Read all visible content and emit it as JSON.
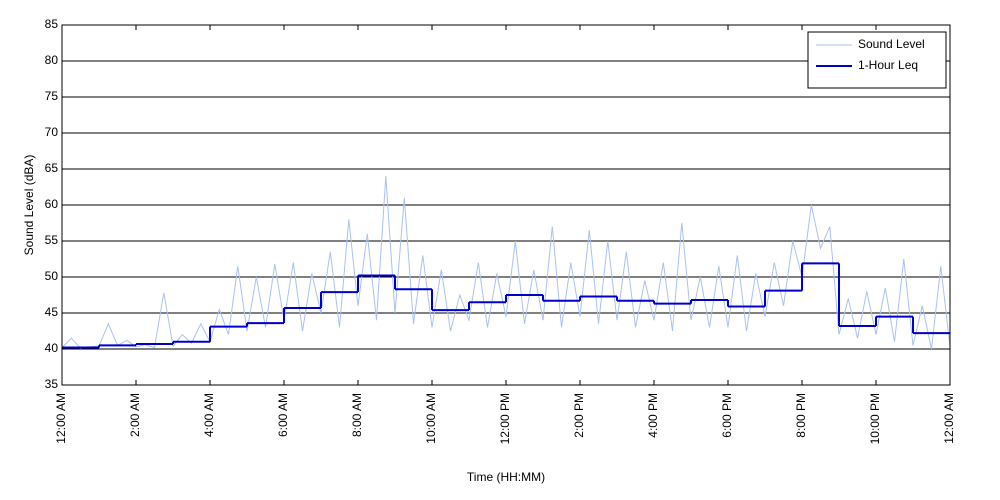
{
  "chart_data": {
    "type": "line",
    "x_label": "Time (HH:MM)",
    "y_label": "Sound Level (dBA)",
    "xlim": [
      0,
      24
    ],
    "ylim": [
      35,
      85
    ],
    "xticks": [
      {
        "value": 0,
        "label": "12:00 AM"
      },
      {
        "value": 2,
        "label": "2:00 AM"
      },
      {
        "value": 4,
        "label": "4:00 AM"
      },
      {
        "value": 6,
        "label": "6:00 AM"
      },
      {
        "value": 8,
        "label": "8:00 AM"
      },
      {
        "value": 10,
        "label": "10:00 AM"
      },
      {
        "value": 12,
        "label": "12:00 PM"
      },
      {
        "value": 14,
        "label": "2:00 PM"
      },
      {
        "value": 16,
        "label": "4:00 PM"
      },
      {
        "value": 18,
        "label": "6:00 PM"
      },
      {
        "value": 20,
        "label": "8:00 PM"
      },
      {
        "value": 22,
        "label": "10:00 PM"
      },
      {
        "value": 24,
        "label": "12:00 AM"
      }
    ],
    "yticks": [
      35,
      40,
      45,
      50,
      55,
      60,
      65,
      70,
      75,
      80,
      85
    ],
    "grid": true,
    "legend": "northeast",
    "series": [
      {
        "name": "Sound Level",
        "color": "#a9c2f2",
        "drawstyle": "default",
        "x": [
          0,
          0.25,
          0.5,
          0.75,
          1,
          1.25,
          1.5,
          1.75,
          2,
          2.25,
          2.5,
          2.75,
          3,
          3.25,
          3.5,
          3.75,
          4,
          4.25,
          4.5,
          4.75,
          5,
          5.25,
          5.5,
          5.75,
          6,
          6.25,
          6.5,
          6.75,
          7,
          7.25,
          7.5,
          7.75,
          8,
          8.25,
          8.5,
          8.75,
          9,
          9.25,
          9.5,
          9.75,
          10,
          10.25,
          10.5,
          10.75,
          11,
          11.25,
          11.5,
          11.75,
          12,
          12.25,
          12.5,
          12.75,
          13,
          13.25,
          13.5,
          13.75,
          14,
          14.25,
          14.5,
          14.75,
          15,
          15.25,
          15.5,
          15.75,
          16,
          16.25,
          16.5,
          16.75,
          17,
          17.25,
          17.5,
          17.75,
          18,
          18.25,
          18.5,
          18.75,
          19,
          19.25,
          19.5,
          19.75,
          20,
          20.25,
          20.5,
          20.75,
          21,
          21.25,
          21.5,
          21.75,
          22,
          22.25,
          22.5,
          22.75,
          23,
          23.25,
          23.5,
          23.75,
          24
        ],
        "values": [
          40.2,
          41.5,
          40.1,
          40.3,
          40.4,
          43.5,
          40.5,
          41.2,
          40.3,
          40.6,
          40.2,
          47.8,
          40.4,
          42.0,
          40.8,
          43.5,
          41.0,
          45.5,
          42.0,
          51.5,
          42.5,
          50.0,
          43.0,
          51.8,
          44.0,
          52.0,
          42.5,
          50.5,
          45.0,
          53.5,
          43.0,
          58.0,
          46.0,
          56.0,
          44.0,
          64.0,
          45.0,
          61.0,
          43.5,
          53.0,
          43.0,
          51.0,
          42.5,
          47.5,
          44.0,
          52.0,
          43.0,
          50.5,
          44.5,
          55.0,
          43.5,
          51.0,
          44.0,
          57.0,
          43.0,
          52.0,
          44.5,
          56.5,
          43.5,
          55.0,
          44.0,
          53.5,
          43.0,
          49.5,
          44.0,
          52.0,
          42.5,
          57.5,
          44.0,
          50.0,
          43.0,
          51.5,
          43.0,
          53.0,
          42.5,
          50.5,
          44.5,
          52.0,
          46.0,
          55.0,
          50.0,
          60.0,
          54.0,
          57.0,
          42.0,
          47.0,
          41.5,
          48.0,
          42.0,
          48.5,
          41.0,
          52.5,
          40.5,
          46.0,
          40.0,
          51.5,
          40.3
        ]
      },
      {
        "name": "1-Hour Leq",
        "color": "#0000cc",
        "drawstyle": "steps-post",
        "x": [
          0,
          1,
          2,
          3,
          4,
          5,
          6,
          7,
          8,
          9,
          10,
          11,
          12,
          13,
          14,
          15,
          16,
          17,
          18,
          19,
          20,
          21,
          22,
          23
        ],
        "values": [
          40.2,
          40.5,
          40.7,
          41.0,
          43.1,
          43.6,
          45.7,
          47.9,
          50.2,
          48.3,
          45.4,
          46.5,
          47.5,
          46.7,
          47.3,
          46.7,
          46.3,
          46.8,
          45.9,
          48.1,
          51.9,
          43.2,
          44.5,
          42.2
        ]
      }
    ]
  }
}
